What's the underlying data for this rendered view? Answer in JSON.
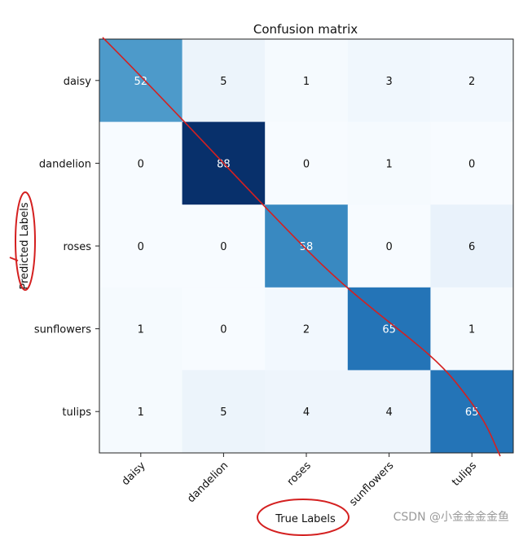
{
  "chart_data": {
    "type": "heatmap",
    "title": "Confusion matrix",
    "xlabel": "True Labels",
    "ylabel": "Predicted Labels",
    "x_categories": [
      "daisy",
      "dandelion",
      "roses",
      "sunflowers",
      "tulips"
    ],
    "y_categories": [
      "daisy",
      "dandelion",
      "roses",
      "sunflowers",
      "tulips"
    ],
    "matrix": [
      [
        52,
        5,
        1,
        3,
        2
      ],
      [
        0,
        88,
        0,
        1,
        0
      ],
      [
        0,
        0,
        58,
        0,
        6
      ],
      [
        1,
        0,
        2,
        65,
        1
      ],
      [
        1,
        5,
        4,
        4,
        65
      ]
    ],
    "colormap": "Blues",
    "vmin": 0,
    "vmax": 88
  },
  "colors": {
    "annotation": "#d42020",
    "text_dark": "#111111",
    "text_light": "#ffffff"
  },
  "watermark": "CSDN @小金金金金鱼"
}
